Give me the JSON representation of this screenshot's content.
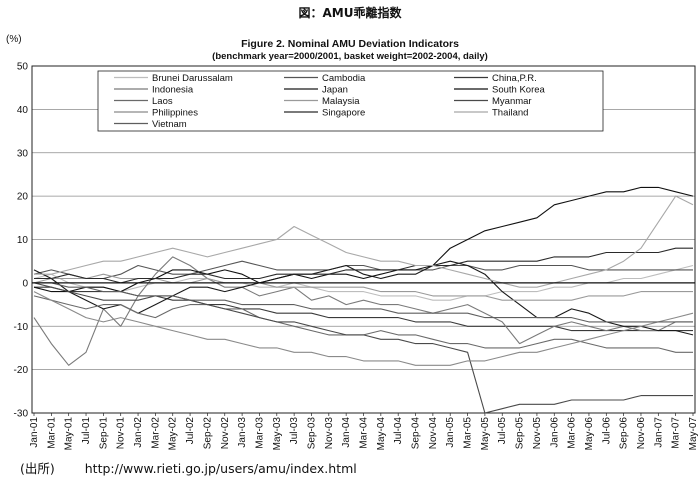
{
  "page": {
    "caption": "図：AMU乖離指数",
    "source_label": "(出所)",
    "source_url": "http://www.rieti.go.jp/users/amu/index.html"
  },
  "chart_data": {
    "type": "line",
    "title": "Figure 2. Nominal AMU Deviation Indicators",
    "subtitle": "(benchmark year=2000/2001, basket weight=2002-2004, daily)",
    "ylabel": "(%)",
    "xlabel": "",
    "ylim": [
      -30,
      50
    ],
    "yticks": [
      50,
      40,
      30,
      20,
      10,
      0,
      -10,
      -20,
      -30
    ],
    "grid": true,
    "legend_position": "top",
    "x": [
      "Jan-01",
      "Mar-01",
      "May-01",
      "Jul-01",
      "Sep-01",
      "Nov-01",
      "Jan-02",
      "Mar-02",
      "May-02",
      "Jul-02",
      "Sep-02",
      "Nov-02",
      "Jan-03",
      "Mar-03",
      "May-03",
      "Jul-03",
      "Sep-03",
      "Nov-03",
      "Jan-04",
      "Mar-04",
      "May-04",
      "Jul-04",
      "Sep-04",
      "Nov-04",
      "Jan-05",
      "Mar-05",
      "May-05",
      "Jul-05",
      "Sep-05",
      "Nov-05",
      "Jan-06",
      "Mar-06",
      "May-06",
      "Jul-06",
      "Sep-06",
      "Nov-06",
      "Jan-07",
      "Mar-07",
      "May-07"
    ],
    "series": [
      {
        "name": "Brunei Darussalam",
        "color": "#bdbdbd",
        "values": [
          1,
          2,
          0,
          -1,
          -1,
          -2,
          -1,
          0,
          0,
          1,
          1,
          0,
          0,
          -1,
          -1,
          0,
          -1,
          -2,
          -2,
          -2,
          -3,
          -3,
          -3,
          -4,
          -4,
          -3,
          -3,
          -2,
          -2,
          -2,
          -1,
          -1,
          0,
          0,
          1,
          1,
          2,
          3,
          4
        ]
      },
      {
        "name": "Cambodia",
        "color": "#555555",
        "values": [
          2,
          3,
          2,
          1,
          1,
          2,
          4,
          3,
          2,
          2,
          3,
          4,
          5,
          4,
          3,
          3,
          3,
          3,
          4,
          4,
          3,
          3,
          3,
          3,
          4,
          4,
          3,
          3,
          4,
          4,
          4,
          4,
          3,
          3,
          3,
          3,
          3,
          3,
          3
        ]
      },
      {
        "name": "China,P.R.",
        "color": "#3a3a3a",
        "values": [
          -1,
          -1,
          -2,
          -2,
          -2,
          -2,
          -3,
          -3,
          -4,
          -4,
          -5,
          -5,
          -6,
          -6,
          -7,
          -7,
          -7,
          -8,
          -8,
          -8,
          -8,
          -8,
          -9,
          -9,
          -9,
          -10,
          -10,
          -10,
          -10,
          -10,
          -10,
          -11,
          -11,
          -11,
          -11,
          -11,
          -11,
          -11,
          -11
        ]
      },
      {
        "name": "Indonesia",
        "color": "#7a7a7a",
        "values": [
          -8,
          -14,
          -19,
          -16,
          -6,
          -10,
          -3,
          2,
          6,
          4,
          1,
          -1,
          -1,
          -3,
          -2,
          -1,
          -4,
          -3,
          -5,
          -4,
          -5,
          -5,
          -6,
          -7,
          -6,
          -5,
          -7,
          -9,
          -14,
          -12,
          -10,
          -9,
          -10,
          -11,
          -10,
          -11,
          -11,
          -9,
          -9
        ]
      },
      {
        "name": "Japan",
        "color": "#1a1a1a",
        "values": [
          3,
          1,
          -2,
          -4,
          -6,
          -5,
          -7,
          -5,
          -3,
          -1,
          -1,
          -2,
          -1,
          0,
          1,
          2,
          2,
          3,
          4,
          2,
          1,
          2,
          2,
          4,
          5,
          4,
          2,
          -2,
          -5,
          -8,
          -8,
          -6,
          -7,
          -9,
          -10,
          -10,
          -11,
          -11,
          -12
        ]
      },
      {
        "name": "South Korea",
        "color": "#111111",
        "values": [
          -1,
          -2,
          -2,
          -1,
          -1,
          -2,
          0,
          1,
          3,
          3,
          2,
          3,
          2,
          0,
          1,
          2,
          1,
          2,
          2,
          1,
          2,
          3,
          3,
          4,
          8,
          10,
          12,
          13,
          14,
          15,
          18,
          19,
          20,
          21,
          21,
          22,
          22,
          21,
          20
        ]
      },
      {
        "name": "Laos",
        "color": "#6a6a6a",
        "values": [
          -3,
          -4,
          -5,
          -6,
          -5,
          -5,
          -7,
          -8,
          -6,
          -5,
          -5,
          -6,
          -6,
          -8,
          -9,
          -10,
          -11,
          -12,
          -12,
          -12,
          -11,
          -12,
          -12,
          -13,
          -14,
          -14,
          -15,
          -15,
          -15,
          -14,
          -13,
          -13,
          -14,
          -15,
          -15,
          -15,
          -15,
          -16,
          -16
        ]
      },
      {
        "name": "Malaysia",
        "color": "#9a9a9a",
        "values": [
          0,
          1,
          1,
          1,
          2,
          1,
          1,
          1,
          0,
          0,
          1,
          0,
          0,
          0,
          -1,
          -1,
          -1,
          -1,
          -1,
          -1,
          -2,
          -2,
          -2,
          -3,
          -3,
          -3,
          -3,
          -4,
          -4,
          -4,
          -4,
          -4,
          -3,
          -3,
          -3,
          -2,
          -2,
          -2,
          -2
        ]
      },
      {
        "name": "Myanmar",
        "color": "#4a4a4a",
        "values": [
          0,
          -1,
          -2,
          -3,
          -4,
          -4,
          -4,
          -3,
          -3,
          -4,
          -5,
          -6,
          -7,
          -8,
          -9,
          -9,
          -10,
          -11,
          -12,
          -12,
          -13,
          -13,
          -14,
          -14,
          -15,
          -16,
          -30,
          -29,
          -28,
          -28,
          -28,
          -27,
          -27,
          -27,
          -27,
          -26,
          -26,
          -26,
          -26
        ]
      },
      {
        "name": "Philippines",
        "color": "#8a8a8a",
        "values": [
          -2,
          -4,
          -6,
          -8,
          -9,
          -8,
          -9,
          -10,
          -11,
          -12,
          -13,
          -13,
          -14,
          -15,
          -15,
          -16,
          -16,
          -17,
          -17,
          -18,
          -18,
          -18,
          -19,
          -19,
          -19,
          -18,
          -18,
          -17,
          -16,
          -16,
          -15,
          -14,
          -13,
          -12,
          -11,
          -10,
          -9,
          -8,
          -7
        ]
      },
      {
        "name": "Singapore",
        "color": "#2a2a2a",
        "values": [
          1,
          1,
          2,
          1,
          1,
          0,
          1,
          1,
          1,
          2,
          2,
          1,
          1,
          1,
          2,
          2,
          2,
          2,
          3,
          3,
          3,
          3,
          4,
          4,
          4,
          5,
          5,
          5,
          5,
          5,
          6,
          6,
          6,
          7,
          7,
          7,
          7,
          8,
          8
        ]
      },
      {
        "name": "Thailand",
        "color": "#a8a8a8",
        "values": [
          2,
          2,
          3,
          4,
          5,
          5,
          6,
          7,
          8,
          7,
          6,
          7,
          8,
          9,
          10,
          13,
          11,
          9,
          7,
          6,
          5,
          5,
          4,
          4,
          3,
          2,
          1,
          0,
          -1,
          -1,
          0,
          1,
          2,
          3,
          5,
          8,
          14,
          20,
          18
        ]
      },
      {
        "name": "Vietnam",
        "color": "#5e5e5e",
        "values": [
          0,
          0,
          -1,
          -1,
          -2,
          -2,
          -3,
          -3,
          -3,
          -4,
          -4,
          -4,
          -5,
          -5,
          -5,
          -5,
          -6,
          -6,
          -6,
          -6,
          -6,
          -7,
          -7,
          -7,
          -7,
          -7,
          -8,
          -8,
          -8,
          -8,
          -8,
          -8,
          -9,
          -9,
          -9,
          -9,
          -9,
          -9,
          -9
        ]
      }
    ]
  }
}
